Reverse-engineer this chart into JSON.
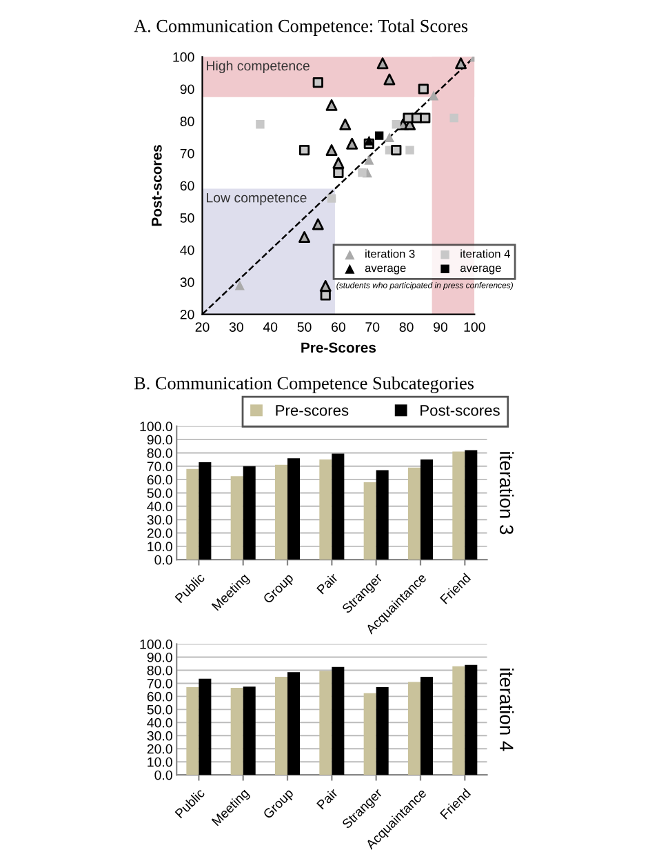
{
  "chart_data": [
    {
      "type": "scatter",
      "title": "A. Communication Competence: Total Scores",
      "xlabel": "Pre-Scores",
      "ylabel": "Post-scores",
      "xlim": [
        20,
        100
      ],
      "ylim": [
        20,
        100
      ],
      "xticks": [
        20,
        30,
        40,
        50,
        60,
        70,
        80,
        90,
        100
      ],
      "yticks": [
        20,
        30,
        40,
        50,
        60,
        70,
        80,
        90,
        100
      ],
      "grid": false,
      "legend": "bottom right",
      "bands": [
        {
          "axis": "y",
          "from": 87.5,
          "to": 100,
          "label": "High competence",
          "color": "#f0c9cd"
        },
        {
          "axis": "x",
          "from": 87.5,
          "to": 100,
          "color": "#f0c9cd"
        },
        {
          "axis": "x",
          "from": 20,
          "to": 59,
          "label": "Low competence",
          "color": "#dedeed"
        }
      ],
      "series": [
        {
          "name": "iteration 3",
          "color": "#aaaaaa",
          "marker": "triangle",
          "x": [
            100,
            88,
            75,
            69,
            68.5,
            31
          ],
          "values": [
            100,
            88,
            75,
            68,
            64,
            29
          ]
        },
        {
          "name": "(students who participated in press conferences)",
          "color": "#000000",
          "colors": [
            "#aaaaaa",
            "#aaaaaa",
            "#aaaaaa",
            "#aaaaaa",
            "#aaaaaa",
            "#aaaaaa",
            "#aaaaaa",
            "#aaaaaa",
            "#aaaaaa",
            "#aaaaaa",
            "#aaaaaa",
            "#aaaaaa"
          ],
          "marker": "triangle",
          "line_style": "solid",
          "x": [
            73,
            75,
            96,
            58,
            62,
            64,
            58,
            60,
            79,
            81,
            50,
            54
          ],
          "values": [
            98,
            93,
            98,
            85,
            79,
            73,
            71,
            67,
            79,
            79,
            44,
            48
          ]
        },
        {
          "name": "iteration 4",
          "color": "#c8c8c8",
          "marker": "square",
          "x": [
            37,
            77,
            75,
            81,
            94,
            58,
            67
          ],
          "values": [
            79,
            79,
            71,
            71,
            81,
            56,
            64
          ]
        },
        {
          "color": "#000000",
          "colors": [
            "#c8c8c8",
            "#c8c8c8",
            "#c8c8c8",
            "#c8c8c8",
            "#c8c8c8",
            "#c8c8c8",
            "#c8c8c8",
            "#c8c8c8",
            "#c8c8c8"
          ],
          "marker": "square",
          "line_style": "solid",
          "x": [
            54,
            85,
            80.5,
            83,
            85.5,
            50,
            69,
            77,
            60
          ],
          "values": [
            92,
            90,
            81,
            81,
            81,
            71,
            73,
            71,
            64
          ]
        },
        {
          "name": "average",
          "color": "#000000",
          "marker": "triangle",
          "x": [
            69
          ],
          "values": [
            74
          ]
        },
        {
          "name": "average",
          "color": "#000000",
          "marker": "square",
          "x": [
            72
          ],
          "values": [
            75.5
          ]
        },
        {
          "type": "line",
          "color": "#000000",
          "line_style": "dashed",
          "x": [
            20,
            100
          ],
          "values": [
            20,
            100
          ]
        }
      ]
    },
    {
      "type": "bar",
      "title": "B. Communication Competence Subcategories",
      "ylabel": "iteration 3",
      "categories": [
        "Public",
        "Meeting",
        "Group",
        "Pair",
        "Stranger",
        "Acquaintance",
        "Friend"
      ],
      "ylim": [
        0,
        100
      ],
      "yticks": [
        {
          "value": 0,
          "label": "0.0"
        },
        {
          "value": 10,
          "label": "10.0"
        },
        {
          "value": 20,
          "label": "20.0"
        },
        {
          "value": 30,
          "label": "30.0"
        },
        {
          "value": 40,
          "label": "40.0"
        },
        {
          "value": 50,
          "label": "50.0"
        },
        {
          "value": 60,
          "label": "60.0"
        },
        {
          "value": 70,
          "label": "70.0"
        },
        {
          "value": 80,
          "label": "80.0"
        },
        {
          "value": 90,
          "label": "90.0"
        },
        {
          "value": 100,
          "label": "100.0"
        }
      ],
      "grid": "y",
      "legend": "top",
      "series": [
        {
          "name": "Pre-scores",
          "color": "#c9c29b",
          "values": [
            68,
            62.5,
            71,
            75,
            58,
            69,
            81
          ]
        },
        {
          "name": "Post-scores",
          "color": "#000000",
          "values": [
            73,
            70,
            76,
            79.5,
            67,
            75,
            82
          ]
        }
      ]
    },
    {
      "type": "bar",
      "ylabel": "iteration 4",
      "categories": [
        "Public",
        "Meeting",
        "Group",
        "Pair",
        "Stranger",
        "Acquaintance",
        "Friend"
      ],
      "ylim": [
        0,
        100
      ],
      "yticks": [
        {
          "value": 0,
          "label": "0.0"
        },
        {
          "value": 10,
          "label": "10.0"
        },
        {
          "value": 20,
          "label": "20.0"
        },
        {
          "value": 30,
          "label": "30.0"
        },
        {
          "value": 40,
          "label": "40.0"
        },
        {
          "value": 50,
          "label": "50.0"
        },
        {
          "value": 60,
          "label": "60.0"
        },
        {
          "value": 70,
          "label": "70.0"
        },
        {
          "value": 80,
          "label": "80.0"
        },
        {
          "value": 90,
          "label": "90.0"
        },
        {
          "value": 100,
          "label": "100.0"
        }
      ],
      "grid": "y",
      "series": [
        {
          "color": "#c9c29b",
          "values": [
            67,
            66.5,
            75,
            79.5,
            62.5,
            71,
            83
          ]
        },
        {
          "color": "#000000",
          "values": [
            73.5,
            67.5,
            78.5,
            82.5,
            67,
            75,
            84
          ]
        }
      ]
    }
  ]
}
